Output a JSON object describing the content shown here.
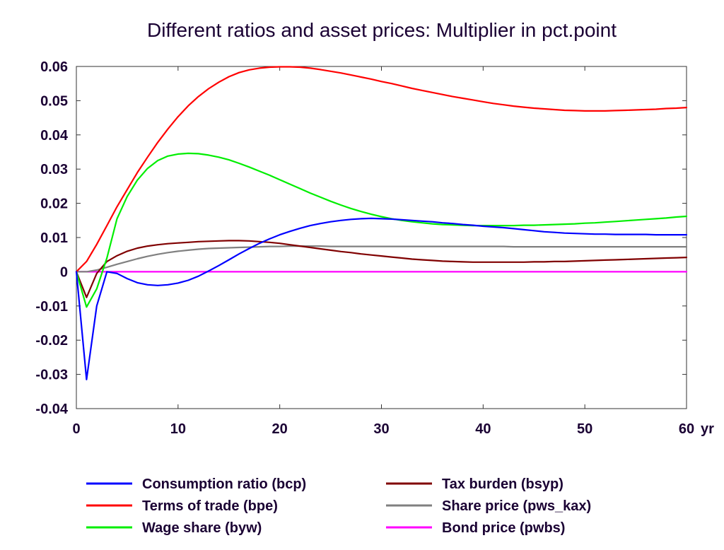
{
  "chart_data": {
    "type": "line",
    "title": "Different ratios and asset prices: Multiplier in pct.point",
    "xlabel": "",
    "ylabel": "",
    "x_unit_label": "yr",
    "xlim": [
      0,
      60
    ],
    "ylim": [
      -0.04,
      0.06
    ],
    "x_ticks": [
      0,
      10,
      20,
      30,
      40,
      50,
      60
    ],
    "x_tick_labels": [
      "0",
      "10",
      "20",
      "30",
      "40",
      "50",
      "60"
    ],
    "y_ticks": [
      -0.04,
      -0.03,
      -0.02,
      -0.01,
      0,
      0.01,
      0.02,
      0.03,
      0.04,
      0.05,
      0.06
    ],
    "y_tick_labels": [
      "-0.04",
      "-0.03",
      "-0.02",
      "-0.01",
      "0",
      "0.01",
      "0.02",
      "0.03",
      "0.04",
      "0.05",
      "0.06"
    ],
    "grid": false,
    "legend_position": "bottom",
    "x": [
      0,
      1,
      2,
      3,
      4,
      5,
      6,
      7,
      8,
      9,
      10,
      11,
      12,
      13,
      14,
      15,
      16,
      17,
      18,
      19,
      20,
      21,
      22,
      23,
      24,
      25,
      26,
      27,
      28,
      29,
      30,
      31,
      32,
      33,
      34,
      35,
      36,
      37,
      38,
      39,
      40,
      41,
      42,
      43,
      44,
      45,
      46,
      47,
      48,
      49,
      50,
      51,
      52,
      53,
      54,
      55,
      56,
      57,
      58,
      59,
      60
    ],
    "series": [
      {
        "name": "Consumption ratio (bcp)",
        "color": "#0000ff",
        "values": [
          0,
          -0.0315,
          -0.01,
          0,
          -0.0005,
          -0.002,
          -0.0032,
          -0.0038,
          -0.004,
          -0.0038,
          -0.0033,
          -0.0025,
          -0.0013,
          0.0002,
          0.0018,
          0.0035,
          0.0052,
          0.0068,
          0.0083,
          0.0096,
          0.0108,
          0.0118,
          0.0127,
          0.0135,
          0.0141,
          0.0146,
          0.015,
          0.0153,
          0.0155,
          0.0156,
          0.0155,
          0.0154,
          0.0152,
          0.015,
          0.0148,
          0.0146,
          0.0143,
          0.0141,
          0.0138,
          0.0136,
          0.0133,
          0.0131,
          0.0129,
          0.0126,
          0.0123,
          0.012,
          0.0117,
          0.0115,
          0.0113,
          0.0112,
          0.0111,
          0.011,
          0.011,
          0.0109,
          0.0109,
          0.0109,
          0.0109,
          0.0108,
          0.0108,
          0.0108,
          0.0108
        ]
      },
      {
        "name": "Terms of trade (bpe)",
        "color": "#ff0000",
        "values": [
          0,
          0.003,
          0.008,
          0.0135,
          0.019,
          0.024,
          0.029,
          0.0335,
          0.0378,
          0.0417,
          0.0453,
          0.0485,
          0.0512,
          0.0535,
          0.0554,
          0.057,
          0.0582,
          0.059,
          0.0595,
          0.0598,
          0.0599,
          0.0599,
          0.0598,
          0.0595,
          0.0591,
          0.0586,
          0.0581,
          0.0575,
          0.0569,
          0.0563,
          0.0556,
          0.055,
          0.0543,
          0.0536,
          0.053,
          0.0524,
          0.0518,
          0.0512,
          0.0507,
          0.0502,
          0.0497,
          0.0492,
          0.0488,
          0.0484,
          0.0481,
          0.0478,
          0.0476,
          0.0474,
          0.0472,
          0.0471,
          0.047,
          0.047,
          0.047,
          0.0471,
          0.0472,
          0.0473,
          0.0474,
          0.0475,
          0.0477,
          0.0478,
          0.048
        ]
      },
      {
        "name": "Wage share (byw)",
        "color": "#00ee00",
        "values": [
          0,
          -0.0103,
          -0.005,
          0.004,
          0.0155,
          0.022,
          0.0268,
          0.0302,
          0.0325,
          0.0338,
          0.0344,
          0.0346,
          0.0345,
          0.0341,
          0.0335,
          0.0327,
          0.0317,
          0.0306,
          0.0294,
          0.0282,
          0.0269,
          0.0256,
          0.0243,
          0.023,
          0.0218,
          0.0206,
          0.0195,
          0.0185,
          0.0176,
          0.0168,
          0.0161,
          0.0155,
          0.015,
          0.0146,
          0.0143,
          0.014,
          0.0138,
          0.0137,
          0.0136,
          0.0135,
          0.0135,
          0.0135,
          0.0135,
          0.0135,
          0.0136,
          0.0136,
          0.0137,
          0.0138,
          0.0139,
          0.014,
          0.0142,
          0.0143,
          0.0145,
          0.0147,
          0.0149,
          0.0151,
          0.0153,
          0.0155,
          0.0157,
          0.016,
          0.0162
        ]
      },
      {
        "name": "Tax burden (bsyp)",
        "color": "#800000",
        "values": [
          0,
          -0.0075,
          -0.0005,
          0.003,
          0.0047,
          0.006,
          0.0069,
          0.0075,
          0.0079,
          0.0082,
          0.0084,
          0.0086,
          0.0088,
          0.0089,
          0.009,
          0.0091,
          0.0091,
          0.009,
          0.0088,
          0.0086,
          0.0083,
          0.0079,
          0.0075,
          0.0071,
          0.0067,
          0.0063,
          0.0059,
          0.0056,
          0.0052,
          0.0049,
          0.0046,
          0.0043,
          0.004,
          0.0037,
          0.0035,
          0.0033,
          0.0031,
          0.003,
          0.0029,
          0.0028,
          0.0028,
          0.0028,
          0.0028,
          0.0028,
          0.0028,
          0.0029,
          0.0029,
          0.003,
          0.003,
          0.0031,
          0.0032,
          0.0033,
          0.0034,
          0.0035,
          0.0036,
          0.0037,
          0.0038,
          0.0039,
          0.004,
          0.0041,
          0.0042
        ]
      },
      {
        "name": "Share price (pws_kax)",
        "color": "#808080",
        "values": [
          0,
          0,
          0.0005,
          0.0013,
          0.0022,
          0.003,
          0.0038,
          0.0045,
          0.0051,
          0.0056,
          0.006,
          0.0063,
          0.0066,
          0.0068,
          0.0069,
          0.007,
          0.0071,
          0.0072,
          0.0073,
          0.0074,
          0.0074,
          0.0075,
          0.0075,
          0.0075,
          0.0075,
          0.0074,
          0.0074,
          0.0074,
          0.0074,
          0.0074,
          0.0074,
          0.0074,
          0.0074,
          0.0074,
          0.0074,
          0.0074,
          0.0074,
          0.0074,
          0.0074,
          0.0074,
          0.0074,
          0.0074,
          0.0074,
          0.0073,
          0.0073,
          0.0073,
          0.0073,
          0.0073,
          0.0073,
          0.0073,
          0.0073,
          0.0073,
          0.0073,
          0.0073,
          0.0073,
          0.0073,
          0.0073,
          0.0073,
          0.0073,
          0.0073,
          0.0073
        ]
      },
      {
        "name": "Bond price (pwbs)",
        "color": "#ff00ff",
        "values": [
          0,
          0,
          0,
          0,
          0,
          0,
          0,
          0,
          0,
          0,
          0,
          0,
          0,
          0,
          0,
          0,
          0,
          0,
          0,
          0,
          0,
          0,
          0,
          0,
          0,
          0,
          0,
          0,
          0,
          0,
          0,
          0,
          0,
          0,
          0,
          0,
          0,
          0,
          0,
          0,
          0,
          0,
          0,
          0,
          0,
          0,
          0,
          0,
          0,
          0,
          0,
          0,
          0,
          0,
          0,
          0,
          0,
          0,
          0,
          0,
          0
        ]
      }
    ]
  }
}
